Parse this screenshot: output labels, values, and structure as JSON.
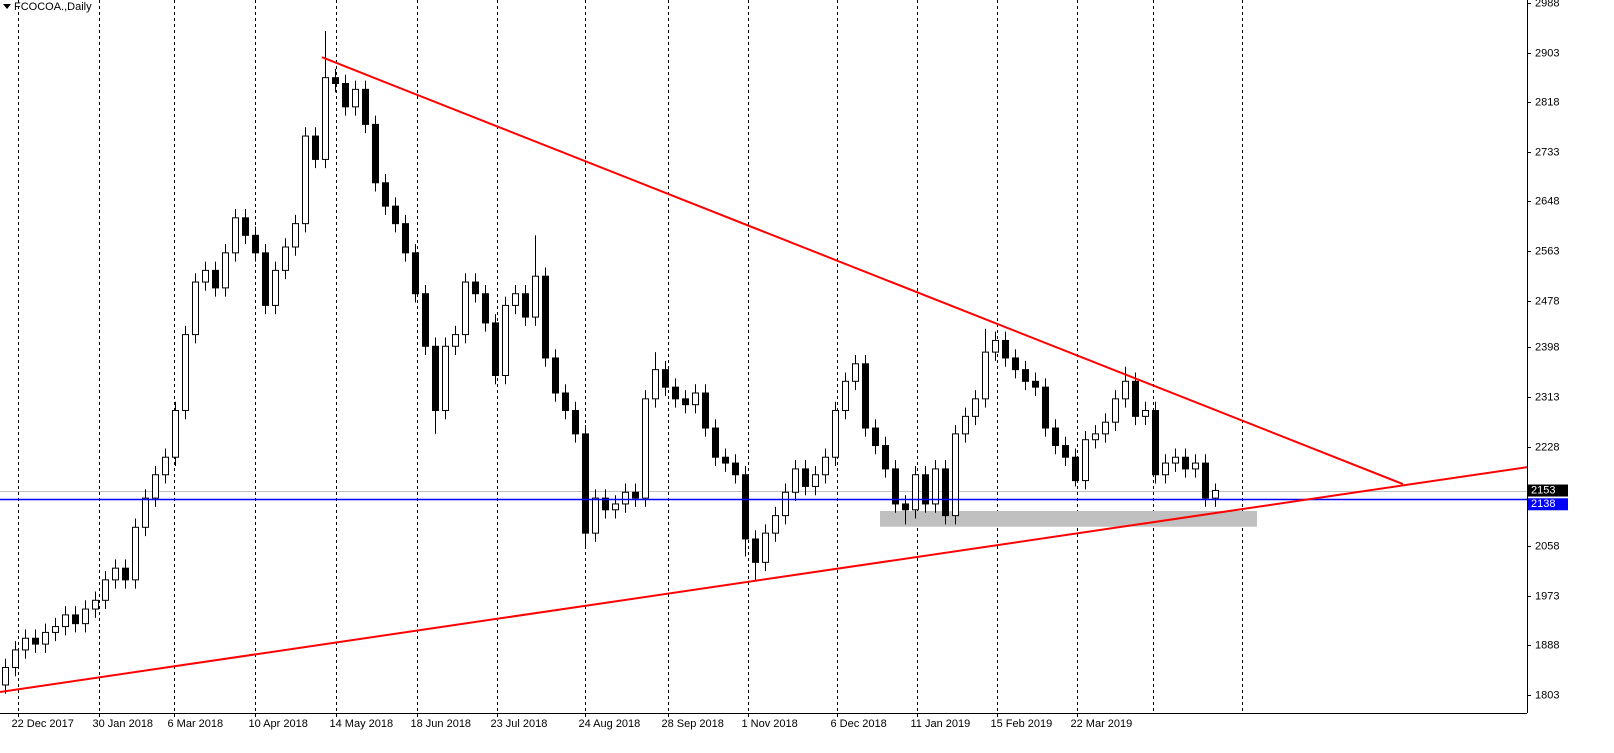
{
  "chart_data": {
    "type": "candlestick",
    "title": "FCOCOA.,Daily",
    "open": [
      1820,
      1850,
      1880,
      1900,
      1890,
      1910,
      1920,
      1940,
      1925,
      1950,
      1965,
      2000,
      2020,
      2000,
      2090,
      2140,
      2180,
      2210,
      2290,
      2420,
      2510,
      2530,
      2500,
      2560,
      2620,
      2590,
      2560,
      2470,
      2530,
      2570,
      2610,
      2760,
      2720,
      2860,
      2850,
      2810,
      2840,
      2780,
      2680,
      2640,
      2610,
      2560,
      2490,
      2400,
      2290,
      2400,
      2420,
      2510,
      2490,
      2440,
      2350,
      2470,
      2490,
      2450,
      2520,
      2380,
      2320,
      2290,
      2250,
      2080,
      2140,
      2120,
      2130,
      2150,
      2140,
      2310,
      2360,
      2330,
      2310,
      2300,
      2320,
      2260,
      2210,
      2200,
      2180,
      2070,
      2030,
      2080,
      2110,
      2150,
      2190,
      2160,
      2180,
      2210,
      2290,
      2340,
      2370,
      2260,
      2230,
      2190,
      2130,
      2120,
      2180,
      2130,
      2190,
      2110,
      2250,
      2280,
      2310,
      2390,
      2410,
      2380,
      2360,
      2340,
      2330,
      2260,
      2230,
      2210,
      2170,
      2240,
      2250,
      2270,
      2310,
      2340,
      2280,
      2290,
      2180,
      2200,
      2210,
      2190,
      2200,
      2140
    ],
    "high": [
      1865,
      1895,
      1915,
      1915,
      1925,
      1935,
      1955,
      1955,
      1965,
      1980,
      2015,
      2035,
      2035,
      2105,
      2155,
      2195,
      2225,
      2305,
      2435,
      2525,
      2545,
      2545,
      2575,
      2635,
      2635,
      2605,
      2575,
      2545,
      2585,
      2625,
      2775,
      2775,
      2940,
      2875,
      2865,
      2855,
      2855,
      2795,
      2695,
      2655,
      2625,
      2575,
      2505,
      2415,
      2415,
      2435,
      2525,
      2525,
      2505,
      2455,
      2485,
      2505,
      2505,
      2590,
      2535,
      2395,
      2335,
      2305,
      2265,
      2155,
      2155,
      2145,
      2165,
      2165,
      2325,
      2390,
      2375,
      2345,
      2325,
      2335,
      2335,
      2275,
      2225,
      2215,
      2195,
      2085,
      2095,
      2125,
      2165,
      2205,
      2205,
      2195,
      2225,
      2305,
      2355,
      2385,
      2385,
      2275,
      2245,
      2205,
      2145,
      2195,
      2195,
      2205,
      2205,
      2265,
      2295,
      2325,
      2430,
      2425,
      2425,
      2395,
      2375,
      2355,
      2345,
      2275,
      2245,
      2225,
      2255,
      2265,
      2285,
      2325,
      2365,
      2355,
      2305,
      2305,
      2215,
      2225,
      2225,
      2215,
      2215,
      2165
    ],
    "low": [
      1805,
      1835,
      1865,
      1875,
      1875,
      1895,
      1905,
      1910,
      1910,
      1935,
      1950,
      1985,
      1985,
      1985,
      2075,
      2125,
      2165,
      2195,
      2275,
      2405,
      2495,
      2485,
      2485,
      2545,
      2575,
      2545,
      2455,
      2455,
      2515,
      2555,
      2595,
      2705,
      2705,
      2835,
      2795,
      2795,
      2765,
      2665,
      2625,
      2595,
      2545,
      2475,
      2385,
      2250,
      2275,
      2385,
      2405,
      2475,
      2425,
      2335,
      2335,
      2455,
      2435,
      2435,
      2365,
      2305,
      2275,
      2235,
      2058,
      2065,
      2105,
      2105,
      2115,
      2125,
      2125,
      2295,
      2315,
      2295,
      2285,
      2285,
      2245,
      2195,
      2185,
      2165,
      2040,
      2000,
      2015,
      2065,
      2095,
      2135,
      2145,
      2145,
      2165,
      2195,
      2275,
      2325,
      2245,
      2215,
      2175,
      2115,
      2095,
      2105,
      2115,
      2115,
      2095,
      2095,
      2235,
      2265,
      2295,
      2375,
      2365,
      2345,
      2325,
      2315,
      2245,
      2215,
      2195,
      2160,
      2155,
      2225,
      2235,
      2255,
      2295,
      2265,
      2265,
      2165,
      2165,
      2185,
      2175,
      2175,
      2125,
      2125
    ],
    "close": [
      1850,
      1880,
      1900,
      1890,
      1910,
      1920,
      1940,
      1925,
      1950,
      1965,
      2000,
      2020,
      2000,
      2090,
      2140,
      2180,
      2210,
      2290,
      2420,
      2510,
      2530,
      2500,
      2560,
      2620,
      2590,
      2560,
      2470,
      2530,
      2570,
      2610,
      2760,
      2720,
      2860,
      2850,
      2810,
      2840,
      2780,
      2680,
      2640,
      2610,
      2560,
      2490,
      2400,
      2290,
      2400,
      2420,
      2510,
      2490,
      2440,
      2350,
      2470,
      2490,
      2450,
      2520,
      2380,
      2320,
      2290,
      2250,
      2080,
      2140,
      2120,
      2130,
      2150,
      2140,
      2310,
      2360,
      2330,
      2310,
      2300,
      2320,
      2260,
      2210,
      2200,
      2180,
      2070,
      2030,
      2080,
      2110,
      2150,
      2190,
      2160,
      2180,
      2210,
      2290,
      2340,
      2370,
      2260,
      2230,
      2190,
      2130,
      2120,
      2180,
      2130,
      2190,
      2110,
      2250,
      2280,
      2310,
      2390,
      2410,
      2380,
      2360,
      2340,
      2330,
      2260,
      2230,
      2210,
      2170,
      2240,
      2250,
      2270,
      2310,
      2340,
      2280,
      2290,
      2180,
      2200,
      2210,
      2190,
      2200,
      2140,
      2153
    ],
    "up_color": "#ffffff",
    "down_color": "#000000",
    "wick_color": "#000000",
    "xlim": [
      0,
      152.7
    ],
    "xticks": [
      {
        "value": 1.8,
        "label": "22 Dec 2017"
      },
      {
        "value": 9.9,
        "label": "30 Jan 2018"
      },
      {
        "value": 17.4,
        "label": "6 Mar 2018"
      },
      {
        "value": 25.5,
        "label": "10 Apr 2018"
      },
      {
        "value": 33.6,
        "label": "14 May 2018"
      },
      {
        "value": 41.7,
        "label": "18 Jun 2018"
      },
      {
        "value": 49.7,
        "label": "23 Jul 2018"
      },
      {
        "value": 58.5,
        "label": "24 Aug 2018"
      },
      {
        "value": 66.8,
        "label": "28 Sep 2018"
      },
      {
        "value": 74.8,
        "label": "1 Nov 2018"
      },
      {
        "value": 83.7,
        "label": "6 Dec 2018"
      },
      {
        "value": 91.7,
        "label": "11 Jan 2019"
      },
      {
        "value": 99.7,
        "label": "15 Feb 2019"
      },
      {
        "value": 107.7,
        "label": "22 Mar 2019"
      }
    ],
    "xgrid_extra": [
      115.3,
      124.2
    ],
    "xgrid": true,
    "ylim": [
      1772,
      2993
    ],
    "yticks": [
      2988,
      2903,
      2818,
      2733,
      2648,
      2563,
      2478,
      2398,
      2313,
      2228,
      2058,
      1973,
      1888,
      1803
    ],
    "trendlines": [
      {
        "x": [
          32.2,
          140.3
        ],
        "y": [
          2895,
          2164
        ],
        "color": "#ff0000"
      },
      {
        "x": [
          0,
          152.7
        ],
        "y": [
          1808,
          2193
        ],
        "color": "#ff0000"
      }
    ],
    "zone": {
      "x": [
        88,
        125.7
      ],
      "y": [
        2091,
        2118
      ],
      "color": "#c0c0c0"
    },
    "hline": {
      "value": 2138,
      "color": "#0000ff"
    },
    "last_price": 2153
  }
}
